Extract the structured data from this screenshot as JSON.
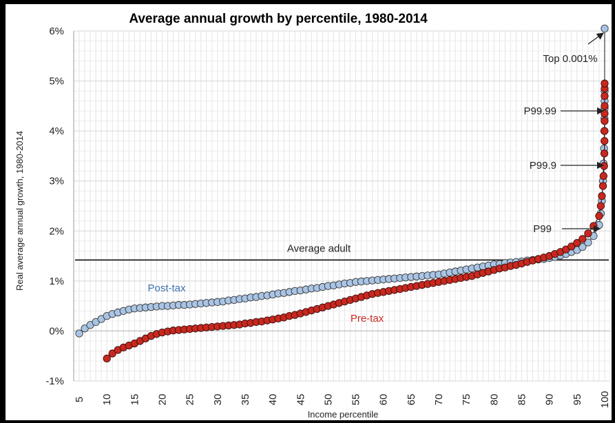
{
  "chart_data": {
    "type": "scatter",
    "title": "Average annual growth by percentile, 1980-2014",
    "xlabel": "Income percentile",
    "ylabel": "Real average annual growth, 1980-2014",
    "xlim": [
      4,
      101
    ],
    "ylim": [
      -1,
      6
    ],
    "x_ticks": [
      "5",
      "10",
      "15",
      "20",
      "25",
      "30",
      "35",
      "40",
      "45",
      "50",
      "55",
      "60",
      "65",
      "70",
      "75",
      "80",
      "85",
      "90",
      "95",
      "100"
    ],
    "y_ticks": [
      "6%",
      "5%",
      "4%",
      "3%",
      "2%",
      "1%",
      "0%",
      "-1%"
    ],
    "grid": true,
    "reference_line": {
      "label": "Average adult",
      "y": 1.42
    },
    "series": [
      {
        "name": "Post-tax",
        "color": "#a9c4e4",
        "edge_color": "#3a3a3a",
        "points": [
          [
            5,
            -0.05
          ],
          [
            6,
            0.05
          ],
          [
            7,
            0.12
          ],
          [
            8,
            0.18
          ],
          [
            9,
            0.24
          ],
          [
            10,
            0.3
          ],
          [
            11,
            0.34
          ],
          [
            12,
            0.37
          ],
          [
            13,
            0.4
          ],
          [
            14,
            0.43
          ],
          [
            15,
            0.45
          ],
          [
            16,
            0.46
          ],
          [
            17,
            0.47
          ],
          [
            18,
            0.48
          ],
          [
            19,
            0.49
          ],
          [
            20,
            0.5
          ],
          [
            21,
            0.5
          ],
          [
            22,
            0.51
          ],
          [
            23,
            0.52
          ],
          [
            24,
            0.52
          ],
          [
            25,
            0.53
          ],
          [
            26,
            0.54
          ],
          [
            27,
            0.55
          ],
          [
            28,
            0.56
          ],
          [
            29,
            0.57
          ],
          [
            30,
            0.58
          ],
          [
            31,
            0.59
          ],
          [
            32,
            0.61
          ],
          [
            33,
            0.62
          ],
          [
            34,
            0.64
          ],
          [
            35,
            0.65
          ],
          [
            36,
            0.67
          ],
          [
            37,
            0.68
          ],
          [
            38,
            0.7
          ],
          [
            39,
            0.71
          ],
          [
            40,
            0.73
          ],
          [
            41,
            0.75
          ],
          [
            42,
            0.76
          ],
          [
            43,
            0.78
          ],
          [
            44,
            0.8
          ],
          [
            45,
            0.81
          ],
          [
            46,
            0.83
          ],
          [
            47,
            0.85
          ],
          [
            48,
            0.86
          ],
          [
            49,
            0.88
          ],
          [
            50,
            0.9
          ],
          [
            51,
            0.91
          ],
          [
            52,
            0.93
          ],
          [
            53,
            0.95
          ],
          [
            54,
            0.96
          ],
          [
            55,
            0.98
          ],
          [
            56,
            0.99
          ],
          [
            57,
            1.0
          ],
          [
            58,
            1.01
          ],
          [
            59,
            1.02
          ],
          [
            60,
            1.03
          ],
          [
            61,
            1.04
          ],
          [
            62,
            1.05
          ],
          [
            63,
            1.06
          ],
          [
            64,
            1.07
          ],
          [
            65,
            1.08
          ],
          [
            66,
            1.09
          ],
          [
            67,
            1.1
          ],
          [
            68,
            1.11
          ],
          [
            69,
            1.12
          ],
          [
            70,
            1.13
          ],
          [
            71,
            1.15
          ],
          [
            72,
            1.17
          ],
          [
            73,
            1.19
          ],
          [
            74,
            1.21
          ],
          [
            75,
            1.23
          ],
          [
            76,
            1.25
          ],
          [
            77,
            1.27
          ],
          [
            78,
            1.29
          ],
          [
            79,
            1.31
          ],
          [
            80,
            1.33
          ],
          [
            81,
            1.34
          ],
          [
            82,
            1.36
          ],
          [
            83,
            1.37
          ],
          [
            84,
            1.38
          ],
          [
            85,
            1.39
          ],
          [
            86,
            1.41
          ],
          [
            87,
            1.42
          ],
          [
            88,
            1.43
          ],
          [
            89,
            1.44
          ],
          [
            90,
            1.46
          ],
          [
            91,
            1.48
          ],
          [
            92,
            1.51
          ],
          [
            93,
            1.54
          ],
          [
            94,
            1.58
          ],
          [
            95,
            1.62
          ],
          [
            96,
            1.68
          ],
          [
            97,
            1.77
          ],
          [
            98,
            1.9
          ],
          [
            99,
            2.12
          ],
          [
            99.3,
            2.35
          ],
          [
            99.5,
            2.6
          ],
          [
            99.7,
            3.0
          ],
          [
            99.8,
            3.35
          ],
          [
            99.9,
            3.65
          ],
          [
            99.95,
            4.0
          ],
          [
            99.97,
            4.25
          ],
          [
            99.99,
            4.45
          ],
          [
            99.995,
            4.6
          ],
          [
            99.999,
            4.8
          ],
          [
            100,
            6.05
          ]
        ]
      },
      {
        "name": "Pre-tax",
        "color": "#c8281e",
        "edge_color": "#3a1010",
        "points": [
          [
            10,
            -0.55
          ],
          [
            11,
            -0.45
          ],
          [
            12,
            -0.38
          ],
          [
            13,
            -0.33
          ],
          [
            14,
            -0.29
          ],
          [
            15,
            -0.25
          ],
          [
            16,
            -0.2
          ],
          [
            17,
            -0.15
          ],
          [
            18,
            -0.1
          ],
          [
            19,
            -0.06
          ],
          [
            20,
            -0.03
          ],
          [
            21,
            -0.01
          ],
          [
            22,
            0.01
          ],
          [
            23,
            0.02
          ],
          [
            24,
            0.03
          ],
          [
            25,
            0.04
          ],
          [
            26,
            0.05
          ],
          [
            27,
            0.06
          ],
          [
            28,
            0.07
          ],
          [
            29,
            0.08
          ],
          [
            30,
            0.09
          ],
          [
            31,
            0.1
          ],
          [
            32,
            0.11
          ],
          [
            33,
            0.12
          ],
          [
            34,
            0.13
          ],
          [
            35,
            0.15
          ],
          [
            36,
            0.16
          ],
          [
            37,
            0.18
          ],
          [
            38,
            0.19
          ],
          [
            39,
            0.21
          ],
          [
            40,
            0.23
          ],
          [
            41,
            0.25
          ],
          [
            42,
            0.27
          ],
          [
            43,
            0.3
          ],
          [
            44,
            0.32
          ],
          [
            45,
            0.35
          ],
          [
            46,
            0.38
          ],
          [
            47,
            0.41
          ],
          [
            48,
            0.44
          ],
          [
            49,
            0.47
          ],
          [
            50,
            0.5
          ],
          [
            51,
            0.53
          ],
          [
            52,
            0.56
          ],
          [
            53,
            0.59
          ],
          [
            54,
            0.62
          ],
          [
            55,
            0.65
          ],
          [
            56,
            0.68
          ],
          [
            57,
            0.71
          ],
          [
            58,
            0.74
          ],
          [
            59,
            0.76
          ],
          [
            60,
            0.78
          ],
          [
            61,
            0.8
          ],
          [
            62,
            0.82
          ],
          [
            63,
            0.84
          ],
          [
            64,
            0.86
          ],
          [
            65,
            0.88
          ],
          [
            66,
            0.9
          ],
          [
            67,
            0.92
          ],
          [
            68,
            0.94
          ],
          [
            69,
            0.96
          ],
          [
            70,
            0.98
          ],
          [
            71,
            1.0
          ],
          [
            72,
            1.02
          ],
          [
            73,
            1.04
          ],
          [
            74,
            1.06
          ],
          [
            75,
            1.08
          ],
          [
            76,
            1.1
          ],
          [
            77,
            1.13
          ],
          [
            78,
            1.16
          ],
          [
            79,
            1.19
          ],
          [
            80,
            1.22
          ],
          [
            81,
            1.25
          ],
          [
            82,
            1.27
          ],
          [
            83,
            1.3
          ],
          [
            84,
            1.32
          ],
          [
            85,
            1.35
          ],
          [
            86,
            1.38
          ],
          [
            87,
            1.41
          ],
          [
            88,
            1.44
          ],
          [
            89,
            1.47
          ],
          [
            90,
            1.5
          ],
          [
            91,
            1.54
          ],
          [
            92,
            1.58
          ],
          [
            93,
            1.63
          ],
          [
            94,
            1.69
          ],
          [
            95,
            1.76
          ],
          [
            96,
            1.84
          ],
          [
            97,
            1.95
          ],
          [
            98,
            2.1
          ],
          [
            99,
            2.3
          ],
          [
            99.3,
            2.5
          ],
          [
            99.5,
            2.7
          ],
          [
            99.7,
            2.9
          ],
          [
            99.8,
            3.1
          ],
          [
            99.9,
            3.3
          ],
          [
            99.95,
            3.55
          ],
          [
            99.97,
            3.8
          ],
          [
            99.98,
            4.0
          ],
          [
            99.99,
            4.2
          ],
          [
            99.993,
            4.35
          ],
          [
            99.996,
            4.5
          ],
          [
            99.999,
            4.7
          ],
          [
            99.9995,
            4.85
          ],
          [
            100,
            4.95
          ]
        ]
      }
    ],
    "series_labels": [
      {
        "text": "Post-tax",
        "color": "#3d6fb0"
      },
      {
        "text": "Pre-tax",
        "color": "#c8281e"
      }
    ],
    "annotations": [
      {
        "text": "Top 0.001%"
      },
      {
        "text": "P99.99"
      },
      {
        "text": "P99.9"
      },
      {
        "text": "P99"
      }
    ]
  }
}
